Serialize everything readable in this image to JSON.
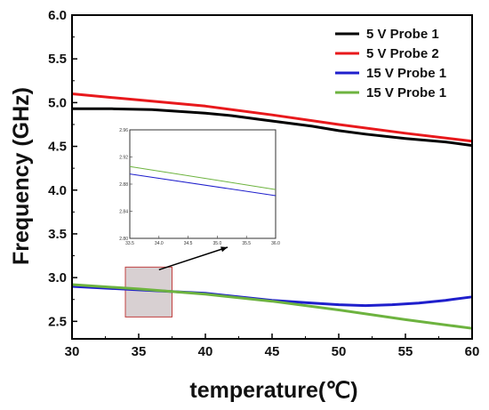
{
  "chart_data": {
    "type": "line",
    "xlabel": "temperature(℃)",
    "ylabel": "Frequency (GHz)",
    "xlim": [
      30,
      60
    ],
    "ylim": [
      2.3,
      6.0
    ],
    "x_ticks": [
      "30",
      "35",
      "40",
      "45",
      "50",
      "55",
      "60"
    ],
    "y_ticks": [
      "2.5",
      "3.0",
      "3.5",
      "4.0",
      "4.5",
      "5.0",
      "5.5",
      "6.0"
    ],
    "x_tick_values": [
      30,
      35,
      40,
      45,
      50,
      55,
      60
    ],
    "y_tick_values": [
      2.5,
      3.0,
      3.5,
      4.0,
      4.5,
      5.0,
      5.5,
      6.0
    ],
    "legend_position": "top-right",
    "series": [
      {
        "name": "5 V Probe 1",
        "color": "#000000",
        "x": [
          30,
          33,
          36,
          38,
          40,
          42,
          44,
          46,
          48,
          50,
          52,
          55,
          58,
          60
        ],
        "y": [
          4.93,
          4.93,
          4.92,
          4.9,
          4.88,
          4.85,
          4.81,
          4.77,
          4.73,
          4.68,
          4.64,
          4.59,
          4.55,
          4.51
        ]
      },
      {
        "name": "5 V Probe 2",
        "color": "#e8191c",
        "x": [
          30,
          35,
          40,
          45,
          50,
          55,
          60
        ],
        "y": [
          5.1,
          5.03,
          4.96,
          4.86,
          4.75,
          4.65,
          4.56
        ]
      },
      {
        "name": "15 V Probe 1",
        "color": "#1f1fcc",
        "x": [
          30,
          35,
          40,
          45,
          48,
          50,
          52,
          54,
          56,
          58,
          60
        ],
        "y": [
          2.9,
          2.86,
          2.82,
          2.74,
          2.71,
          2.69,
          2.68,
          2.69,
          2.71,
          2.74,
          2.78
        ]
      },
      {
        "name": "15 V Probe 1",
        "color": "#6db33f",
        "x": [
          30,
          35,
          40,
          45,
          50,
          55,
          60
        ],
        "y": [
          2.92,
          2.87,
          2.81,
          2.73,
          2.63,
          2.52,
          2.42
        ]
      }
    ],
    "inset": {
      "xlim": [
        33.5,
        36.0
      ],
      "ylim": [
        2.8,
        2.96
      ],
      "x_ticks": [
        "33.5",
        "34.0",
        "34.5",
        "35.0",
        "35.5",
        "36.0"
      ],
      "y_ticks": [
        "2.80",
        "2.84",
        "2.88",
        "2.92",
        "2.96"
      ],
      "x_tick_values": [
        33.5,
        34.0,
        34.5,
        35.0,
        35.5,
        36.0
      ],
      "y_tick_values": [
        2.8,
        2.84,
        2.88,
        2.92,
        2.96
      ],
      "series": [
        {
          "color": "#6db33f",
          "x": [
            33.5,
            36.0
          ],
          "y": [
            2.906,
            2.872
          ]
        },
        {
          "color": "#1f1fcc",
          "x": [
            33.5,
            36.0
          ],
          "y": [
            2.895,
            2.863
          ]
        }
      ]
    },
    "zoom_box": {
      "x": [
        34.0,
        37.5
      ],
      "y": [
        2.55,
        3.12
      ],
      "fill": "#d8d0d2",
      "stroke": "#c04040"
    }
  }
}
